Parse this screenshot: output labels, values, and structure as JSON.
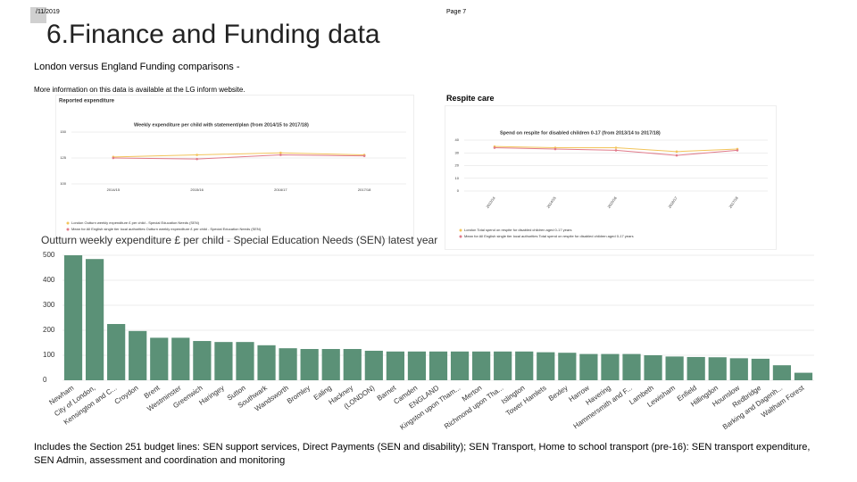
{
  "header": {
    "date": "/11/2019",
    "page": "Page 7",
    "title": "6.Finance and Funding data",
    "subtitle": "London versus England Funding comparisons -",
    "info": "More information on this data is available at the LG inform website.",
    "respite": "Respite care"
  },
  "footer": "Includes  the Section 251 budget lines: SEN support services, Direct Payments (SEN and disability); SEN Transport, Home to school transport (pre-16): SEN transport expenditure, SEN Admin, assessment and coordination and monitoring",
  "chart_data": [
    {
      "type": "bar",
      "title": "Outturn weekly expenditure £ per child -  Special Education Needs (SEN) latest year",
      "categories": [
        "Newham",
        "City of London,",
        "Kensington and C...",
        "Croydon",
        "Brent",
        "Westminster",
        "Greenwich",
        "Haringey",
        "Sutton",
        "Southwark",
        "Wandsworth",
        "Bromley",
        "Ealing",
        "Hackney",
        "(LONDON)",
        "Barnet",
        "Camden",
        "ENGLAND",
        "Kingston upon Tham...",
        "Merton",
        "Richmond upon Tha...",
        "Islington",
        "Tower Hamlets",
        "Bexley",
        "Harrow",
        "Havering",
        "Hammersmith and F...",
        "Lambeth",
        "Lewisham",
        "Enfield",
        "Hillingdon",
        "Hounslow",
        "Redbridge",
        "Barking and Dagenh...",
        "Waltham Forest"
      ],
      "values": [
        500,
        485,
        225,
        197,
        170,
        170,
        157,
        153,
        153,
        140,
        128,
        125,
        125,
        125,
        118,
        115,
        115,
        115,
        115,
        115,
        115,
        115,
        112,
        110,
        105,
        105,
        105,
        100,
        95,
        93,
        92,
        88,
        86,
        60,
        30
      ],
      "color": "#5b9177",
      "ylim": [
        0,
        500
      ],
      "yticks": [
        0,
        100,
        200,
        300,
        400,
        500
      ],
      "grid": true
    },
    {
      "type": "line",
      "heading": "Reported expenditure",
      "title": "Weekly expenditure per child with statement/plan (from 2014/15 to 2017/18)",
      "categories": [
        "2014/15",
        "2015/16",
        "2016/17",
        "2017/18"
      ],
      "series": [
        {
          "name": "London Outturn weekly expenditure £ per child - Special Education Needs (SEN)",
          "color": "#f2c45a",
          "values": [
            126,
            128,
            130,
            128
          ]
        },
        {
          "name": "Mean for All English single tier local authorities Outturn weekly expenditure £ per child - Special Education Needs (SEN)",
          "color": "#e07a8a",
          "values": [
            125,
            124,
            128,
            127
          ]
        }
      ],
      "ylim": [
        100,
        150
      ],
      "yticks": [
        100,
        125,
        150
      ],
      "grid": true
    },
    {
      "type": "line",
      "title": "Spend on respite for disabled children 0-17 (from 2013/14 to 2017/18)",
      "categories": [
        "2013/14",
        "2014/15",
        "2015/16",
        "2016/17",
        "2017/18"
      ],
      "series": [
        {
          "name": "London Total spend on respite for disabled children aged 0-17 years",
          "color": "#f2c45a",
          "values": [
            35,
            34,
            34,
            31,
            33
          ]
        },
        {
          "name": "Mean for All English single tier local authorities Total spend on respite for disabled children aged 0-17 years",
          "color": "#e07a8a",
          "values": [
            34,
            33,
            32,
            28,
            32
          ]
        }
      ],
      "ylim": [
        0,
        40
      ],
      "yticks": [
        0,
        10,
        20,
        30,
        40
      ],
      "grid": true
    }
  ]
}
